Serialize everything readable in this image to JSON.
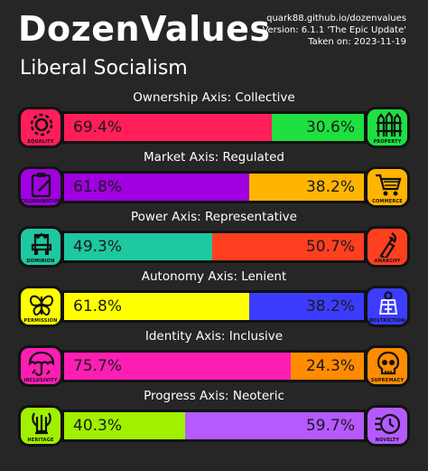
{
  "header": {
    "title": "DozenValues",
    "subtitle": "Liberal Socialism",
    "meta": [
      "quark88.github.io/dozenvalues",
      "Version: 6.1.1 'The Epic Update'",
      "Taken on: 2023-11-19"
    ]
  },
  "axes": [
    {
      "label": "Ownership Axis: Collective",
      "left": {
        "name": "EQUALITY",
        "icon": "gear-icon",
        "color": "#ff1e5a",
        "pct": 69.4,
        "text": "69.4%"
      },
      "right": {
        "name": "PROPERTY",
        "icon": "fence-icon",
        "color": "#1fe040",
        "pct": 30.6,
        "text": "30.6%"
      }
    },
    {
      "label": "Market Axis: Regulated",
      "left": {
        "name": "COORDINATION",
        "icon": "clipboard-icon",
        "color": "#a000e0",
        "pct": 61.8,
        "text": "61.8%"
      },
      "right": {
        "name": "COMMERCE",
        "icon": "cart-icon",
        "color": "#ffb400",
        "pct": 38.2,
        "text": "38.2%"
      }
    },
    {
      "label": "Power Axis: Representative",
      "left": {
        "name": "DOMINION",
        "icon": "throne-icon",
        "color": "#1ec8a0",
        "pct": 49.3,
        "text": "49.3%"
      },
      "right": {
        "name": "ANARCHY",
        "icon": "molotov-icon",
        "color": "#ff4020",
        "pct": 50.7,
        "text": "50.7%"
      }
    },
    {
      "label": "Autonomy Axis: Lenient",
      "left": {
        "name": "PERMISSION",
        "icon": "butterfly-icon",
        "color": "#ffff00",
        "pct": 61.8,
        "text": "61.8%"
      },
      "right": {
        "name": "RESTRICTION",
        "icon": "straitjacket-icon",
        "color": "#3c3cff",
        "pct": 38.2,
        "text": "38.2%"
      }
    },
    {
      "label": "Identity Axis: Inclusive",
      "left": {
        "name": "INCLUSIVITY",
        "icon": "umbrella-icon",
        "color": "#ff1eb4",
        "pct": 75.7,
        "text": "75.7%"
      },
      "right": {
        "name": "SUPREMACY",
        "icon": "skull-icon",
        "color": "#ff8c00",
        "pct": 24.3,
        "text": "24.3%"
      }
    },
    {
      "label": "Progress Axis: Neoteric",
      "left": {
        "name": "HERITAGE",
        "icon": "lyre-icon",
        "color": "#a0f000",
        "pct": 40.3,
        "text": "40.3%"
      },
      "right": {
        "name": "NOVELTY",
        "icon": "clock-icon",
        "color": "#b45aff",
        "pct": 59.7,
        "text": "59.7%"
      }
    }
  ]
}
